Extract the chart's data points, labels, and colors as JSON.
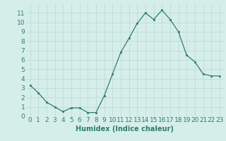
{
  "x": [
    0,
    1,
    2,
    3,
    4,
    5,
    6,
    7,
    8,
    9,
    10,
    11,
    12,
    13,
    14,
    15,
    16,
    17,
    18,
    19,
    20,
    21,
    22,
    23
  ],
  "y": [
    3.3,
    2.5,
    1.5,
    1.0,
    0.5,
    0.9,
    0.9,
    0.4,
    0.4,
    2.2,
    4.5,
    6.8,
    8.3,
    9.9,
    11.0,
    10.3,
    11.3,
    10.3,
    9.0,
    6.5,
    5.8,
    4.5,
    4.3,
    4.3
  ],
  "xlabel": "Humidex (Indice chaleur)",
  "ylim": [
    0,
    12
  ],
  "xlim": [
    -0.5,
    23.5
  ],
  "yticks": [
    0,
    1,
    2,
    3,
    4,
    5,
    6,
    7,
    8,
    9,
    10,
    11
  ],
  "xticks": [
    0,
    1,
    2,
    3,
    4,
    5,
    6,
    7,
    8,
    9,
    10,
    11,
    12,
    13,
    14,
    15,
    16,
    17,
    18,
    19,
    20,
    21,
    22,
    23
  ],
  "line_color": "#2e7d6e",
  "marker_color": "#2e7d6e",
  "bg_color": "#d6eeea",
  "grid_color": "#b8d8d2",
  "label_color": "#2e7d6e",
  "xlabel_fontsize": 7,
  "tick_fontsize": 6.5
}
